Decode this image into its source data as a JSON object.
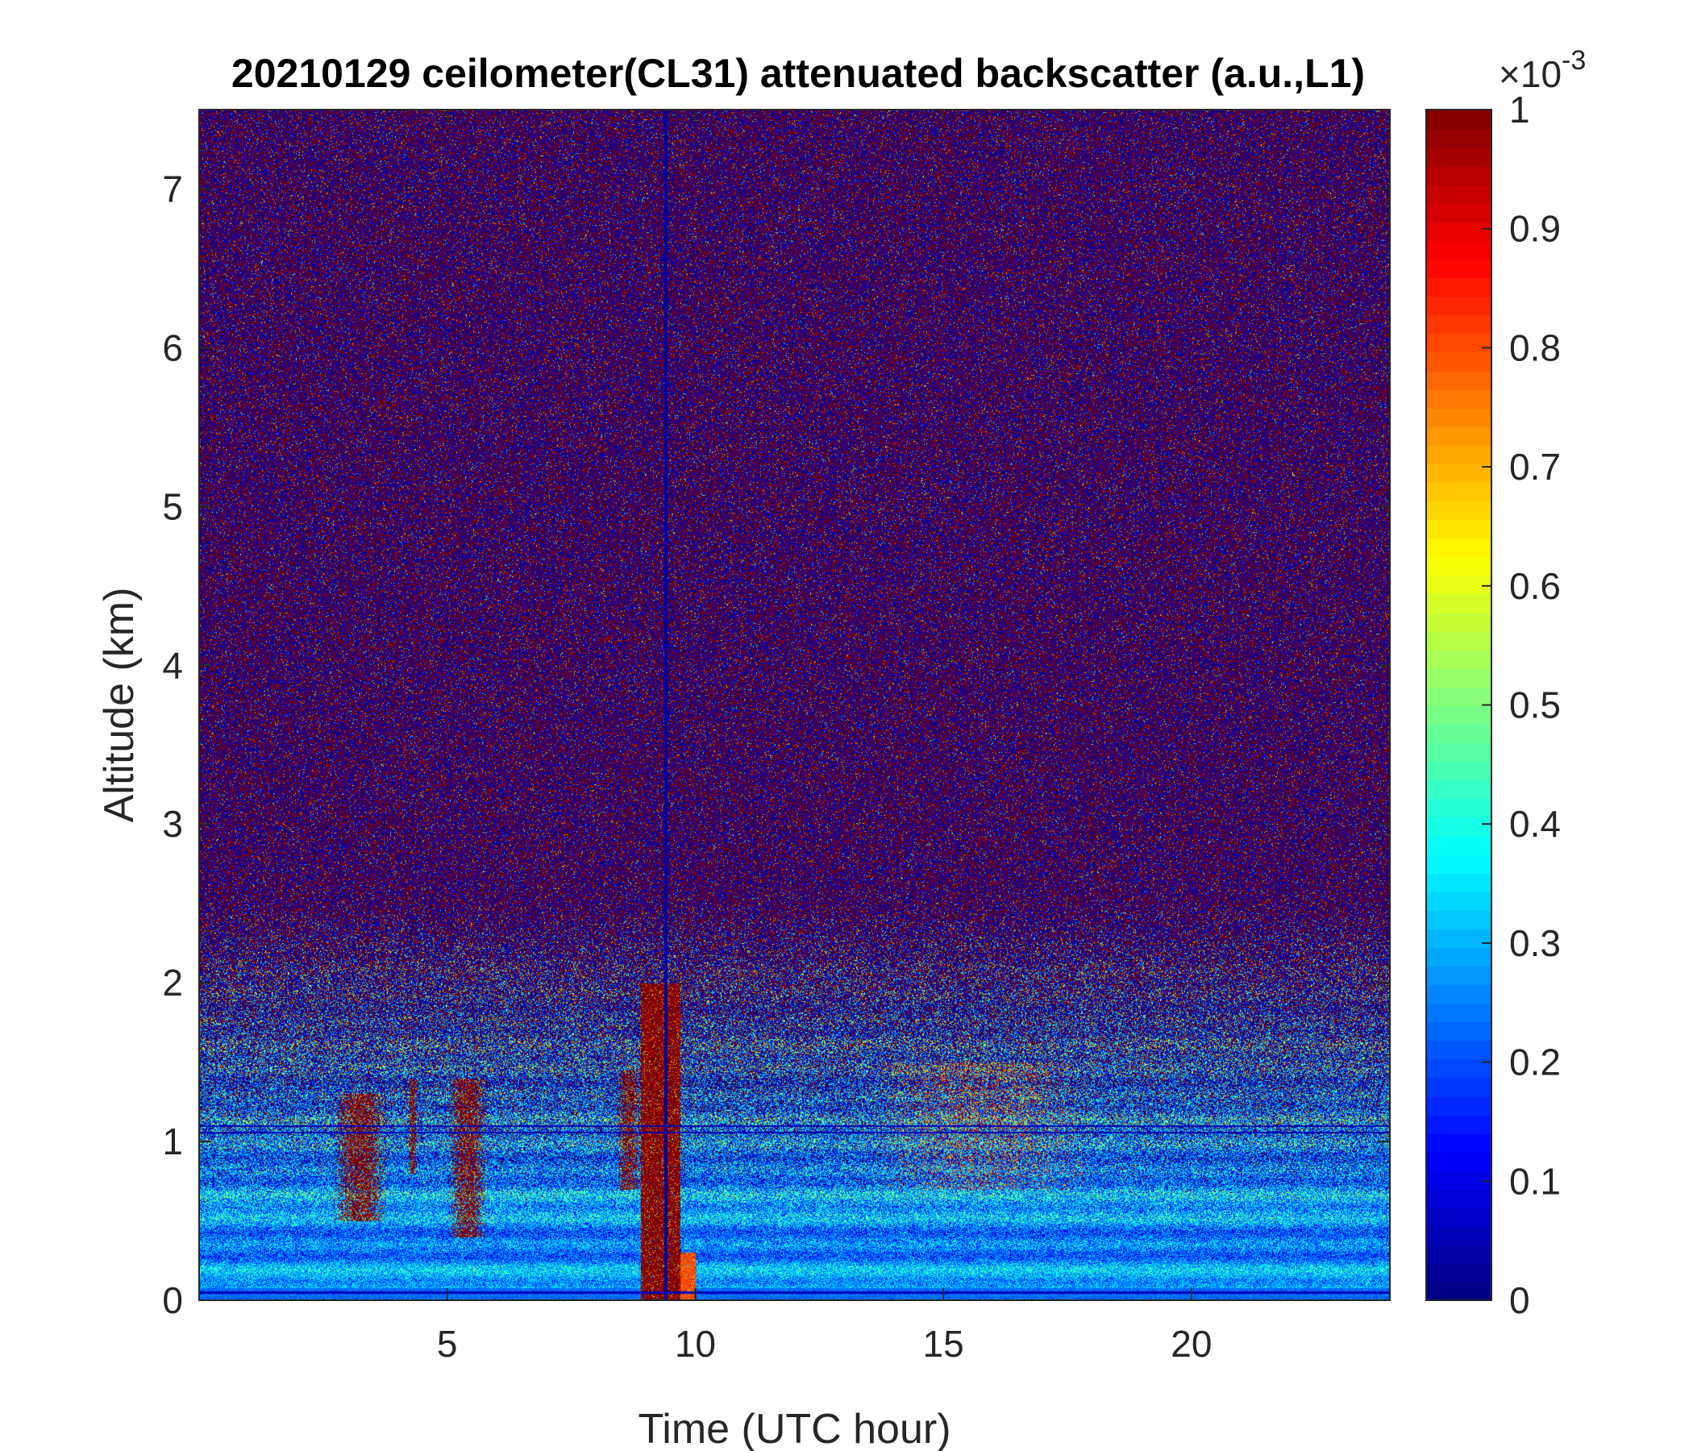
{
  "chart_data": {
    "type": "heatmap",
    "title": "20210129 ceilometer(CL31) attenuated backscatter (a.u.,L1)",
    "xlabel": "Time (UTC hour)",
    "ylabel": "Altitude (km)",
    "xlim": [
      0,
      24
    ],
    "ylim": [
      0,
      7.5
    ],
    "xticks": [
      5,
      10,
      15,
      20
    ],
    "yticks": [
      0,
      1,
      2,
      3,
      4,
      5,
      6,
      7
    ],
    "colormap": "jet",
    "colorbar": {
      "clim": [
        0,
        1
      ],
      "ticks": [
        0,
        0.1,
        0.2,
        0.3,
        0.4,
        0.5,
        0.6,
        0.7,
        0.8,
        0.9,
        1
      ],
      "tick_labels": [
        "0",
        "0.1",
        "0.2",
        "0.3",
        "0.4",
        "0.5",
        "0.6",
        "0.7",
        "0.8",
        "0.9",
        "1"
      ],
      "exponent_label": "×10",
      "exponent": "-3"
    },
    "features": [
      {
        "kind": "boundary-layer",
        "time": [
          0,
          24
        ],
        "altitude": [
          0,
          1.0
        ],
        "value": 0.3
      },
      {
        "kind": "noise-saturated",
        "time": [
          0,
          24
        ],
        "altitude": [
          2.5,
          7.5
        ]
      },
      {
        "kind": "cloud",
        "time": [
          2.7,
          3.8
        ],
        "altitude": [
          0.5,
          1.3
        ],
        "value": 1
      },
      {
        "kind": "cloud",
        "time": [
          4.2,
          4.4
        ],
        "altitude": [
          0.8,
          1.4
        ],
        "value": 1
      },
      {
        "kind": "cloud",
        "time": [
          5.0,
          5.8
        ],
        "altitude": [
          0.4,
          1.4
        ],
        "value": 1
      },
      {
        "kind": "cloud",
        "time": [
          8.4,
          8.9
        ],
        "altitude": [
          0.7,
          1.45
        ],
        "value": 1
      },
      {
        "kind": "precipitation",
        "time": [
          8.9,
          9.7
        ],
        "altitude": [
          0,
          2.0
        ],
        "value": 1
      },
      {
        "kind": "precipitation",
        "time": [
          9.7,
          10.0
        ],
        "altitude": [
          0,
          0.3
        ],
        "value": 0.8
      },
      {
        "kind": "aerosol-layer",
        "time": [
          13.5,
          18.0
        ],
        "altitude": [
          0.7,
          1.5
        ],
        "value": 0.7
      }
    ]
  }
}
